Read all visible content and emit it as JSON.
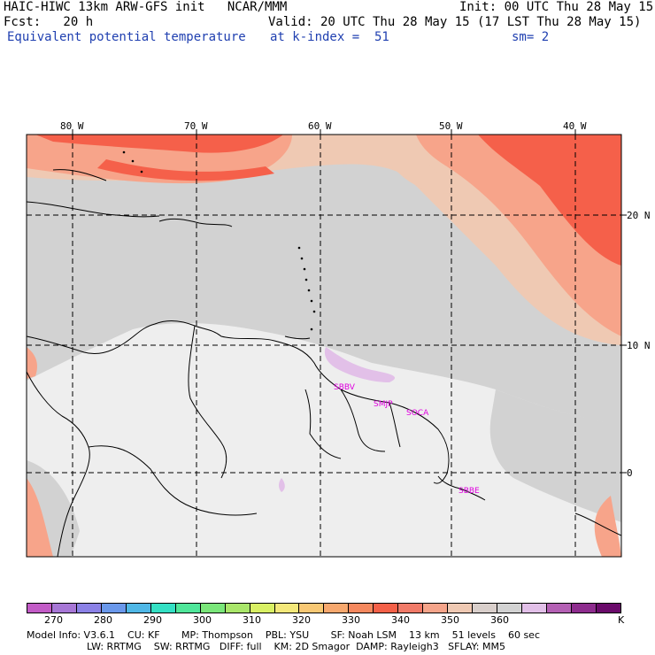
{
  "header": {
    "line1_left": "HAIC-HIWC 13km ARW-GFS init   NCAR/MMM",
    "line1_right": "Init: 00 UTC Thu 28 May 15",
    "line2_left": "Fcst:   20 h",
    "line2_right": "Valid: 20 UTC Thu 28 May 15 (17 LST Thu 28 May 15)",
    "line3_left": "Equivalent potential temperature",
    "line3_mid": "at k-index =  51",
    "line3_right": "sm= 2"
  },
  "map": {
    "lon_labels": [
      "80 W",
      "70 W",
      "60 W",
      "50 W",
      "40 W"
    ],
    "lat_labels": [
      "20 N",
      "10 N",
      "0"
    ],
    "stations": [
      "SBBV",
      "SMJP",
      "SOCA",
      "SBBE"
    ],
    "colors": {
      "land_light": "#eeeeee",
      "mid_gray": "#d2d2d2",
      "tan": "#efc9b3",
      "salmon": "#f7a48a",
      "orange_red": "#f5604a",
      "lilac": "#e2c0e8"
    }
  },
  "colorbar": {
    "colors": [
      "#c25bc6",
      "#a777d6",
      "#8b81e6",
      "#6a98eb",
      "#4fb7e6",
      "#34e0c4",
      "#4fe69a",
      "#7ae67a",
      "#a9e66a",
      "#d9f064",
      "#f4e87a",
      "#f8c874",
      "#f7a86e",
      "#f5885e",
      "#f46048",
      "#f07a68",
      "#f5a48a",
      "#efc9b3",
      "#d9cfcb",
      "#d2d2d2",
      "#e2c0e8",
      "#b460b4",
      "#8e2c8e",
      "#6a0a6a"
    ],
    "labels": [
      "270",
      "280",
      "290",
      "300",
      "310",
      "320",
      "330",
      "340",
      "350",
      "360",
      "K"
    ]
  },
  "footer": {
    "line1": "Model Info: V3.6.1    CU: KF       MP: Thompson    PBL: YSU       SF: Noah LSM    13 km    51 levels    60 sec",
    "line2": "LW: RRTMG    SW: RRTMG   DIFF: full    KM: 2D Smagor  DAMP: Rayleigh3   SFLAY: MM5"
  }
}
